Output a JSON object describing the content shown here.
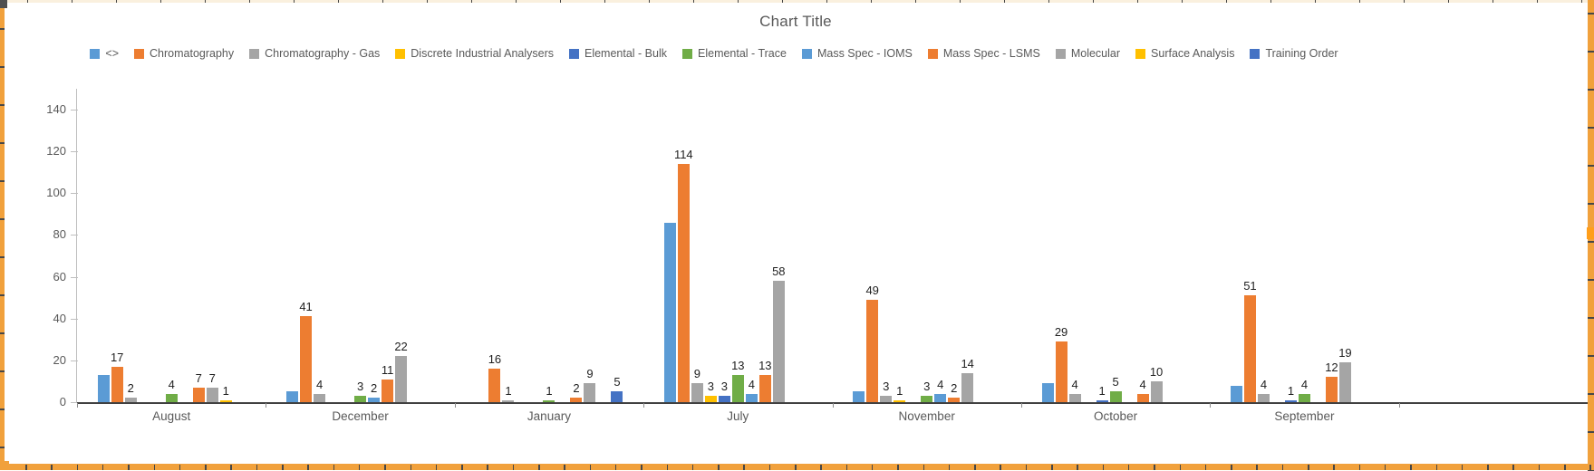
{
  "title": "Chart Title",
  "chart_data": {
    "type": "bar",
    "title": "Chart Title",
    "categories": [
      "August",
      "December",
      "January",
      "July",
      "November",
      "October",
      "September",
      ""
    ],
    "series": [
      {
        "name": "<>",
        "color": "#5B9BD5",
        "show_labels": false,
        "values": [
          13,
          5,
          0,
          86,
          5,
          9,
          8,
          0
        ]
      },
      {
        "name": "Chromatography",
        "color": "#ED7D31",
        "show_labels": true,
        "values": [
          17,
          41,
          16,
          114,
          49,
          29,
          51,
          0
        ]
      },
      {
        "name": "Chromatography - Gas",
        "color": "#A5A5A5",
        "show_labels": true,
        "values": [
          2,
          4,
          1,
          9,
          3,
          4,
          4,
          0
        ]
      },
      {
        "name": "Discrete Industrial Analysers",
        "color": "#FFC000",
        "show_labels": true,
        "values": [
          0,
          0,
          0,
          3,
          1,
          0,
          0,
          0
        ]
      },
      {
        "name": "Elemental - Bulk",
        "color": "#4472C4",
        "show_labels": true,
        "values": [
          0,
          0,
          0,
          3,
          0,
          1,
          1,
          0
        ]
      },
      {
        "name": "Elemental - Trace",
        "color": "#70AD47",
        "show_labels": true,
        "values": [
          4,
          3,
          1,
          13,
          3,
          5,
          4,
          0
        ]
      },
      {
        "name": "Mass Spec - IOMS",
        "color": "#5B9BD5",
        "show_labels": true,
        "values": [
          0,
          2,
          0,
          4,
          4,
          0,
          0,
          0
        ]
      },
      {
        "name": "Mass Spec - LSMS",
        "color": "#ED7D31",
        "show_labels": true,
        "values": [
          7,
          11,
          2,
          13,
          2,
          4,
          12,
          0
        ]
      },
      {
        "name": "Molecular",
        "color": "#A5A5A5",
        "show_labels": true,
        "values": [
          7,
          22,
          9,
          58,
          14,
          10,
          19,
          0
        ]
      },
      {
        "name": "Surface Analysis",
        "color": "#FFC000",
        "show_labels": true,
        "values": [
          1,
          0,
          0,
          0,
          0,
          0,
          0,
          0
        ]
      },
      {
        "name": "Training Order",
        "color": "#4472C4",
        "show_labels": true,
        "values": [
          0,
          0,
          5,
          0,
          0,
          0,
          0,
          0
        ]
      }
    ],
    "y_axis": {
      "min": 0,
      "max": 140,
      "step": 20
    },
    "legend_position": "top",
    "gridlines": false
  },
  "colors": {
    "sheet_fill": "#F1A13C",
    "sheet_grid": "#474747",
    "selection_handle": "#FF9E1B",
    "top_sliver_fill": "#FAF0DE",
    "title_text": "#595959",
    "axis_text": "#595959",
    "data_label_text": "#1F1F1F",
    "y_axis_line": "#BFBFBF",
    "x_axis_line": "#404040",
    "x_tick": "#8C8C8C"
  }
}
